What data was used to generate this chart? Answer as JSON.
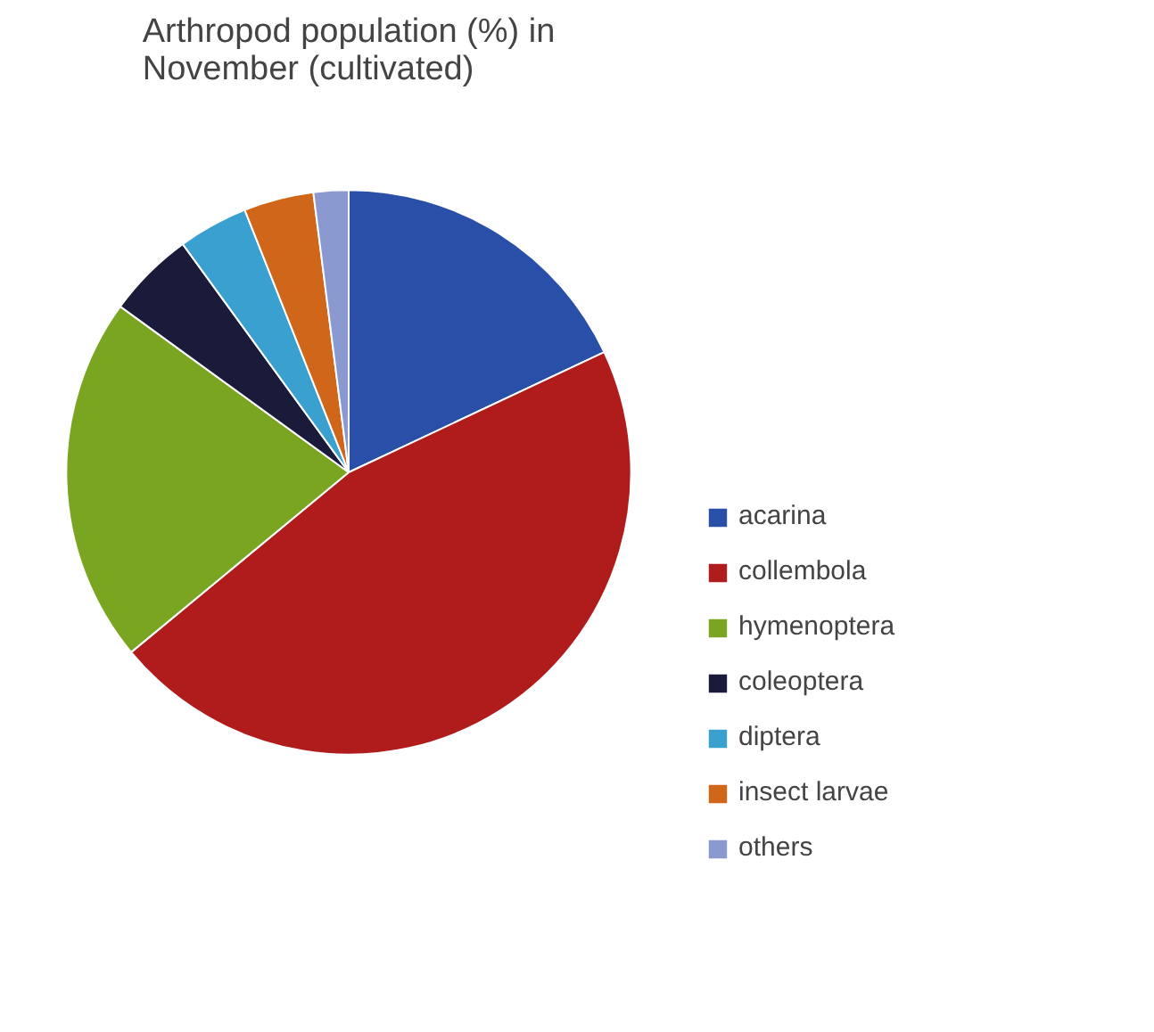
{
  "chart_data": {
    "type": "pie",
    "title": "Arthropod population (%) in November (cultivated)",
    "categories": [
      "acarina",
      "collembola",
      "hymenoptera",
      "coleoptera",
      "diptera",
      "insect larvae",
      "others"
    ],
    "values": [
      18,
      46,
      21,
      5,
      4,
      4,
      2
    ],
    "colors": [
      "#2a4fa8",
      "#b01c1c",
      "#7aa520",
      "#1a1a3a",
      "#3aa0d0",
      "#d0661a",
      "#8a9ad0"
    ],
    "legend": "right"
  }
}
